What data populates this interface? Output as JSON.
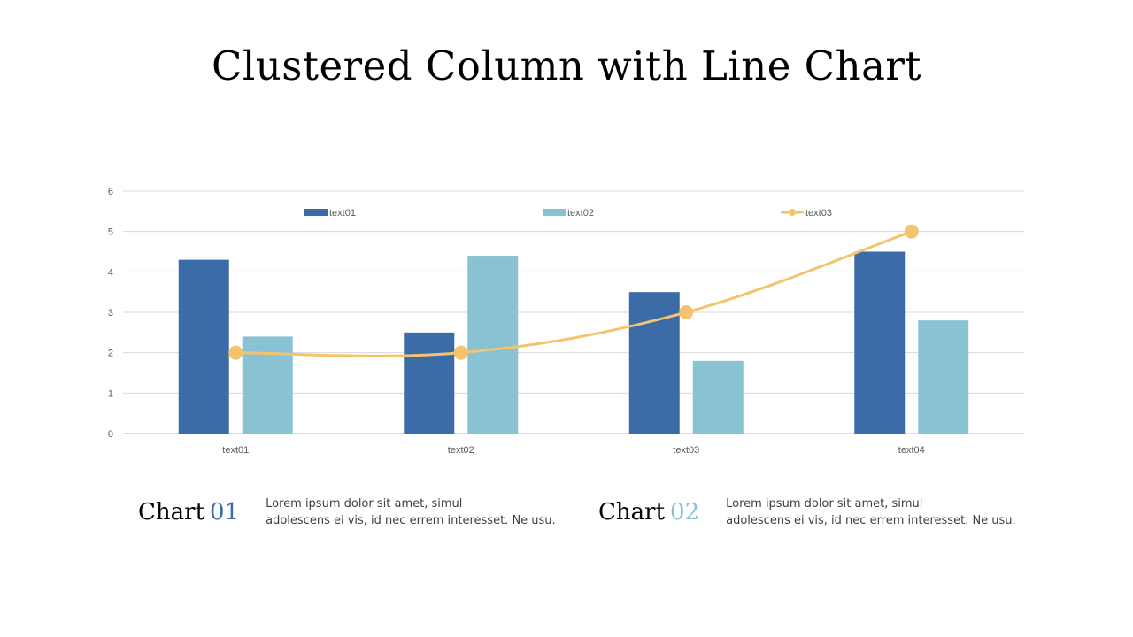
{
  "title": "Clustered Column with Line Chart",
  "colors": {
    "series1": "#3b6ca8",
    "series2": "#88c2d3",
    "series3": "#f4c36c",
    "grid": "#d9d9d9",
    "chart02_num": "#88c2d3",
    "chart01_num": "#3b6ca8"
  },
  "chart_data": {
    "type": "bar",
    "title": "",
    "xlabel": "",
    "ylabel": "",
    "categories": [
      "text01",
      "text02",
      "text03",
      "text04"
    ],
    "ylim": [
      0,
      6
    ],
    "yticks": [
      "0",
      "1",
      "2",
      "3",
      "4",
      "5",
      "6"
    ],
    "grid": true,
    "legend_position": "top",
    "series": [
      {
        "name": "text01",
        "kind": "bar",
        "values": [
          4.3,
          2.5,
          3.5,
          4.5
        ]
      },
      {
        "name": "text02",
        "kind": "bar",
        "values": [
          2.4,
          4.4,
          1.8,
          2.8
        ]
      },
      {
        "name": "text03",
        "kind": "line",
        "values": [
          2.0,
          2.0,
          3.0,
          5.0
        ]
      }
    ]
  },
  "captions": [
    {
      "head": "Chart",
      "num": "01",
      "body_line1": "Lorem ipsum dolor sit amet, simul",
      "body_line2": "adolescens ei vis, id nec errem  interesset. Ne usu."
    },
    {
      "head": "Chart",
      "num": "02",
      "body_line1": "Lorem ipsum dolor sit amet, simul",
      "body_line2": "adolescens ei vis, id nec errem  interesset. Ne usu."
    }
  ]
}
